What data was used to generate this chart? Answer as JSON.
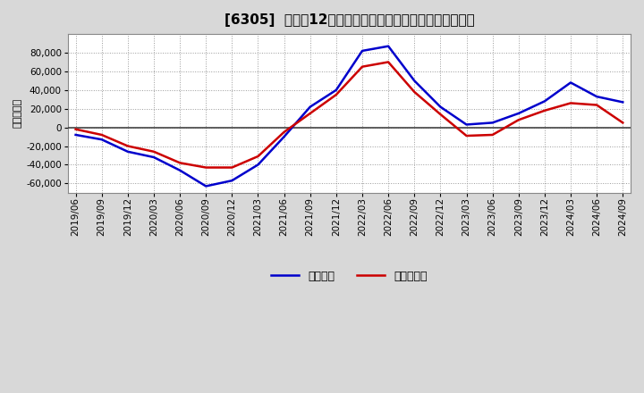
{
  "title": "[6305]  利益だ12か月移動合計の対前年同期増減額の推移",
  "ylabel": "（百万円）",
  "legend_blue": "経常利益",
  "legend_red": "当期純利益",
  "dates": [
    "2019/06",
    "2019/09",
    "2019/12",
    "2020/03",
    "2020/06",
    "2020/09",
    "2020/12",
    "2021/03",
    "2021/06",
    "2021/09",
    "2021/12",
    "2022/03",
    "2022/06",
    "2022/09",
    "2022/12",
    "2023/03",
    "2023/06",
    "2023/09",
    "2023/12",
    "2024/03",
    "2024/06",
    "2024/09"
  ],
  "blue_values": [
    -8000,
    -13000,
    -26000,
    -32000,
    -46000,
    -63000,
    -57000,
    -40000,
    -10000,
    22000,
    40000,
    82000,
    87000,
    50000,
    22000,
    3000,
    5000,
    15000,
    28000,
    48000,
    33000,
    27000
  ],
  "red_values": [
    -2000,
    -8000,
    -20000,
    -26000,
    -38000,
    -43000,
    -43000,
    -31000,
    -5000,
    15000,
    35000,
    65000,
    70000,
    38000,
    14000,
    -9000,
    -8000,
    8000,
    18000,
    26000,
    24000,
    5000
  ],
  "ylim": [
    -70000,
    100000
  ],
  "yticks": [
    -60000,
    -40000,
    -20000,
    0,
    20000,
    40000,
    60000,
    80000
  ],
  "blue_color": "#0000cc",
  "red_color": "#cc0000",
  "bg_color": "#d8d8d8",
  "plot_bg_color": "#ffffff",
  "grid_color": "#999999",
  "zero_line_color": "#444444",
  "title_fontsize": 11,
  "axis_label_fontsize": 8,
  "tick_fontsize": 7.5,
  "legend_fontsize": 9
}
